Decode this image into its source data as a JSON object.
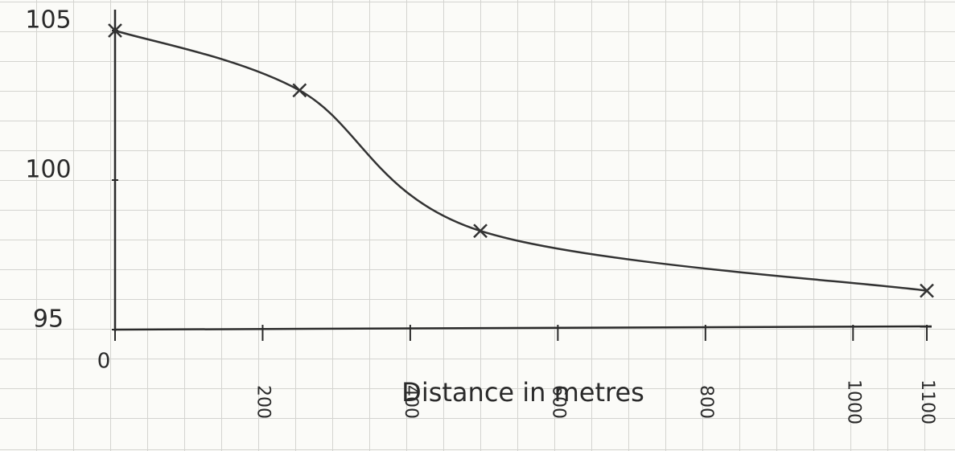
{
  "chart_data": {
    "type": "line",
    "x": [
      0,
      250,
      495,
      1100
    ],
    "series": [
      {
        "color": "#333333",
        "values": [
          105,
          103,
          98.3,
          96.3
        ]
      }
    ],
    "xlabel": "Distance in metres",
    "xlim": [
      0,
      1100
    ],
    "xticks": [
      0,
      200,
      400,
      600,
      800,
      1000,
      1100
    ],
    "ylim": [
      95,
      105
    ],
    "yticks": [
      95,
      100,
      105
    ]
  }
}
